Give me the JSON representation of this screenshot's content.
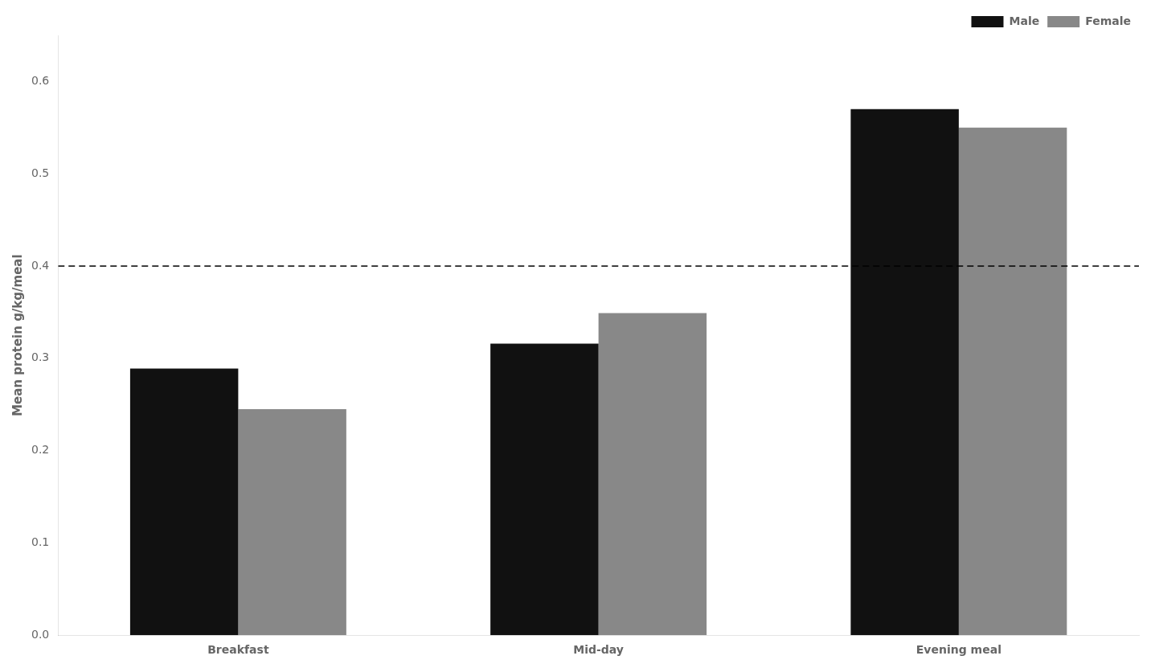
{
  "chart_data": {
    "type": "bar",
    "categories": [
      "Breakfast",
      "Mid-day",
      "Evening meal"
    ],
    "series": [
      {
        "name": "Male",
        "color": "#111111",
        "values": [
          0.289,
          0.316,
          0.57
        ]
      },
      {
        "name": "Female",
        "color": "#888888",
        "values": [
          0.245,
          0.349,
          0.55
        ]
      }
    ],
    "ylabel": "Mean protein g/kg/meal",
    "ylim": [
      0,
      0.65
    ],
    "yticks": [
      {
        "value": 0,
        "label": "0.0"
      },
      0.1,
      0.2,
      0.3,
      0.4,
      0.5,
      0.6
    ],
    "reference_line": {
      "value": 0.4,
      "color": "#000000",
      "line_style": "dashed"
    },
    "grid": false,
    "legend": "upper right"
  }
}
